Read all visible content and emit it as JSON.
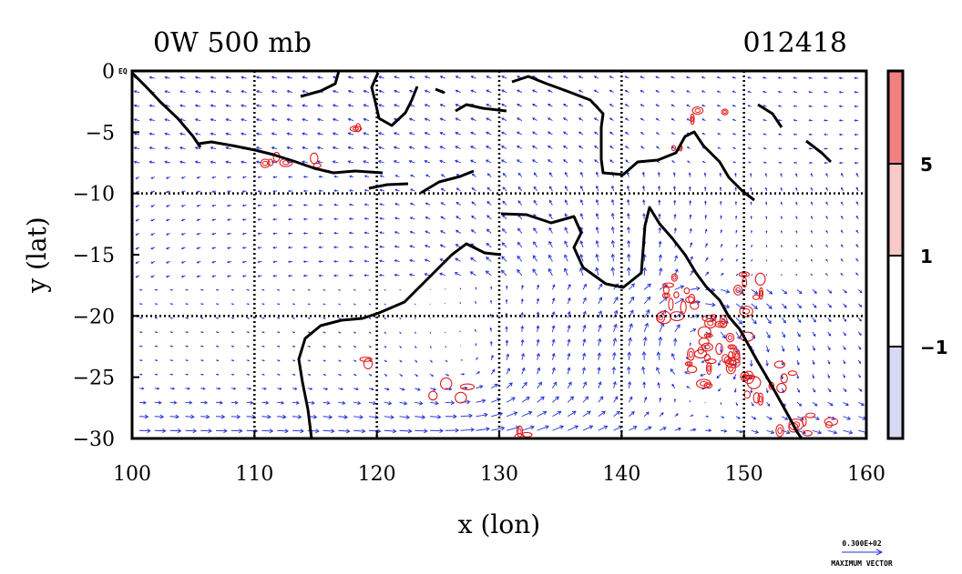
{
  "chart_data": {
    "type": "vector-contour",
    "title_left": "0W 500 mb",
    "title_right": "012418",
    "xlabel": "x (lon)",
    "ylabel": "y (lat)",
    "xlim": [
      100,
      160
    ],
    "ylim": [
      -30,
      0
    ],
    "x_ticks": [
      "100",
      "110",
      "120",
      "130",
      "140",
      "150",
      "160"
    ],
    "x_tick_values": [
      100,
      110,
      120,
      130,
      140,
      150,
      160
    ],
    "y_ticks": [
      "0",
      "−5",
      "−10",
      "−15",
      "−20",
      "−25",
      "−30"
    ],
    "y_tick_values": [
      0,
      -5,
      -10,
      -15,
      -20,
      -25,
      -30
    ],
    "y_top_extra": "EQ",
    "gridlines_lon": [
      110,
      120,
      130,
      140,
      150
    ],
    "gridlines_lat": [
      -10,
      -20
    ],
    "grid": "dotted black",
    "colorbar": {
      "levels": [
        "5",
        "1",
        "−1"
      ],
      "level_values": [
        5,
        1,
        -1
      ],
      "colors": [
        "#f28080",
        "#f9c8c8",
        "#ffffff",
        "#d8daf4"
      ]
    },
    "vector_color": "#1f2fd6",
    "contour_color": "#e01a1a",
    "coastline_color": "#000000",
    "reference_vector": {
      "value": "0.300E+02",
      "label": "MAXIMUM VECTOR"
    }
  }
}
